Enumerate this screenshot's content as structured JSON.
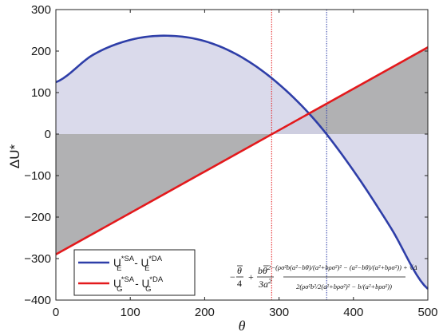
{
  "chart_data": {
    "type": "line",
    "xlabel": "θ",
    "ylabel": "ΔU*",
    "xlim": [
      0,
      500
    ],
    "ylim": [
      -400,
      300
    ],
    "xticks": [
      "0",
      "100",
      "200",
      "300",
      "400",
      "500"
    ],
    "yticks": [
      "300",
      "200",
      "100",
      "0",
      "−100",
      "−200",
      "−300",
      "−400"
    ],
    "series": [
      {
        "name": "U*SA_E - U*DA_E",
        "legend": {
          "a": "U",
          "a_sup": "*SA",
          "a_sub": "E",
          "b": "U",
          "b_sup": "*DA",
          "b_sub": "E"
        },
        "x": [
          0,
          50,
          100,
          150,
          200,
          250,
          300,
          350,
          400,
          450,
          500
        ],
        "y": [
          125,
          191,
          227,
          237,
          224,
          185,
          120,
          30,
          -88,
          -225,
          -373
        ]
      },
      {
        "name": "U*SA_G - U*DA_G",
        "legend": {
          "a": "U",
          "a_sup": "*SA",
          "a_sub": "G",
          "b": "U",
          "b_sup": "*DA",
          "b_sub": "G"
        },
        "x": [
          0,
          500
        ],
        "y": [
          -290,
          209
        ]
      }
    ],
    "vlines": [
      290,
      364
    ],
    "shading": {
      "between_blue_and_zero": "#d3d3e8",
      "between_red_and_zero": "#b1b1b3"
    },
    "annotations": {
      "left_formula": {
        "minus": "−",
        "theta_bar": "θ",
        "over4": "4",
        "plus": "+",
        "num": "bθ",
        "num_sup": "2",
        "den": "3a",
        "den_sup": "2"
      },
      "right_formula": {
        "numerator": "−(ρσ²b(a²−bθ)/(a²+bρσ²)² − (a²−bθ)/(a²+bρσ²)) + √Δ",
        "denominator": "2(ρσ²b²/2(a²+bρσ²)² − b/(a²+bρσ²))"
      }
    }
  },
  "colors": {
    "blue": "#2e3ea8",
    "red": "#e3191c",
    "light_fill": "#d3d3e8",
    "dark_fill": "#b1b1b3",
    "vline_red": "#e3191c",
    "vline_blue": "#2e3ea8"
  }
}
